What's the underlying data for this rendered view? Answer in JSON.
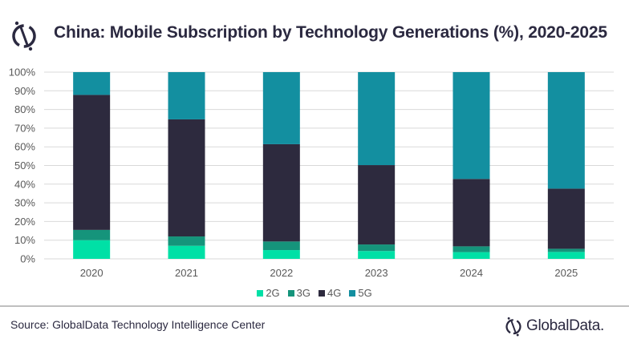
{
  "header": {
    "title": "China: Mobile Subscription by Technology Generations (%), 2020-2025",
    "logo_icon": "globaldata-mark-icon"
  },
  "chart_data": {
    "type": "bar",
    "stacked": true,
    "title": "China: Mobile Subscription by Technology Generations (%), 2020-2025",
    "xlabel": "",
    "ylabel": "",
    "categories": [
      "2020",
      "2021",
      "2022",
      "2023",
      "2024",
      "2025"
    ],
    "series": [
      {
        "name": "2G",
        "color": "#00e0a6",
        "values": [
          10.0,
          7.0,
          4.7,
          4.2,
          3.6,
          3.7
        ]
      },
      {
        "name": "3G",
        "color": "#15947b",
        "values": [
          5.5,
          5.0,
          4.6,
          3.5,
          3.1,
          1.7
        ]
      },
      {
        "name": "4G",
        "color": "#2d2a3e",
        "values": [
          72.3,
          62.7,
          52.1,
          42.5,
          36.1,
          32.2
        ]
      },
      {
        "name": "5G",
        "color": "#138fa0",
        "values": [
          12.2,
          25.3,
          38.6,
          49.8,
          57.2,
          62.4
        ]
      }
    ],
    "ylim": [
      0,
      100
    ],
    "yticks": [
      "0%",
      "10%",
      "20%",
      "30%",
      "40%",
      "50%",
      "60%",
      "70%",
      "80%",
      "90%",
      "100%"
    ],
    "grid": true,
    "legend_position": "bottom"
  },
  "footer": {
    "source": "Source: GlobalData Technology Intelligence Center",
    "brand": "GlobalData."
  }
}
